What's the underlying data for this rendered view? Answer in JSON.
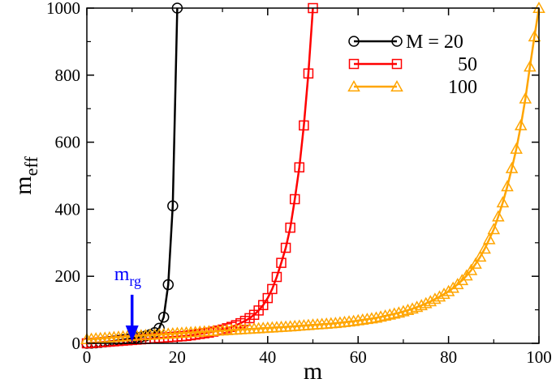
{
  "chart_data": {
    "type": "line",
    "xlabel": "m",
    "ylabel_main": "m",
    "ylabel_sub": "eff",
    "xlim": [
      0,
      100
    ],
    "ylim": [
      0,
      1000
    ],
    "xticks": [
      0,
      20,
      40,
      60,
      80,
      100
    ],
    "yticks": [
      0,
      200,
      400,
      600,
      800,
      1000
    ],
    "legend_position": "top-right",
    "series": [
      {
        "name": "M = 20",
        "color": "#000000",
        "marker": "circle",
        "x": [
          0,
          1,
          2,
          3,
          4,
          5,
          6,
          7,
          8,
          9,
          10,
          11,
          12,
          13,
          14,
          15,
          16,
          17,
          18,
          19,
          20
        ],
        "y": [
          0,
          0.3,
          1.2,
          2.5,
          4,
          5.5,
          7,
          9,
          11,
          13,
          15,
          17,
          19,
          22,
          26,
          32,
          45,
          78,
          175,
          410,
          1000
        ]
      },
      {
        "name": "50",
        "color": "#ff0000",
        "marker": "square",
        "x": [
          0,
          1,
          2,
          3,
          4,
          5,
          6,
          7,
          8,
          9,
          10,
          11,
          12,
          13,
          14,
          15,
          16,
          17,
          18,
          19,
          20,
          21,
          22,
          23,
          24,
          25,
          26,
          27,
          28,
          29,
          30,
          31,
          32,
          33,
          34,
          35,
          36,
          37,
          38,
          39,
          40,
          41,
          42,
          43,
          44,
          45,
          46,
          47,
          48,
          49,
          50
        ],
        "y": [
          0,
          1,
          2,
          3,
          4,
          5,
          6,
          7,
          8,
          9,
          10,
          11,
          12,
          13,
          14,
          15,
          16,
          17,
          18,
          19,
          20,
          21,
          22,
          24,
          26,
          28,
          30,
          32,
          35,
          38,
          41,
          45,
          49,
          54,
          60,
          67,
          75,
          85,
          98,
          114,
          135,
          162,
          198,
          240,
          285,
          345,
          430,
          525,
          650,
          805,
          1000
        ]
      },
      {
        "name": "100",
        "color": "#ffa500",
        "marker": "triangle",
        "x": [
          0,
          1,
          2,
          3,
          4,
          5,
          6,
          7,
          8,
          9,
          10,
          11,
          12,
          13,
          14,
          15,
          16,
          17,
          18,
          19,
          20,
          21,
          22,
          23,
          24,
          25,
          26,
          27,
          28,
          29,
          30,
          31,
          32,
          33,
          34,
          35,
          36,
          37,
          38,
          39,
          40,
          41,
          42,
          43,
          44,
          45,
          46,
          47,
          48,
          49,
          50,
          51,
          52,
          53,
          54,
          55,
          56,
          57,
          58,
          59,
          60,
          61,
          62,
          63,
          64,
          65,
          66,
          67,
          68,
          69,
          70,
          71,
          72,
          73,
          74,
          75,
          76,
          77,
          78,
          79,
          80,
          81,
          82,
          83,
          84,
          85,
          86,
          87,
          88,
          89,
          90,
          91,
          92,
          93,
          94,
          95,
          96,
          97,
          98,
          99,
          100
        ],
        "y": [
          12,
          13,
          14,
          15,
          16,
          17,
          18,
          19,
          20,
          21,
          22,
          22.7,
          23.4,
          24.1,
          24.8,
          25.5,
          26.3,
          27.2,
          28.1,
          29,
          30,
          30.8,
          31.6,
          32.4,
          33.2,
          34,
          34.8,
          35.6,
          36.4,
          37.2,
          38,
          38.8,
          39.6,
          40.4,
          41.2,
          42,
          42.8,
          43.6,
          44.4,
          45.2,
          46,
          46.8,
          47.6,
          48.4,
          49.2,
          50,
          51,
          52,
          53,
          54,
          55,
          56,
          57,
          58,
          59,
          60,
          61.5,
          63,
          64.5,
          66,
          68,
          70,
          72,
          74,
          76,
          79,
          82,
          85,
          88,
          91,
          95,
          99,
          103,
          108,
          113,
          119,
          125,
          132,
          139,
          147,
          155,
          165,
          176,
          188,
          202,
          218,
          237,
          258,
          282,
          310,
          340,
          378,
          420,
          468,
          522,
          580,
          650,
          730,
          825,
          915,
          1000
        ]
      }
    ],
    "annotation": {
      "text_main": "m",
      "text_sub": "rg",
      "x": 10,
      "color": "#0000ff"
    }
  }
}
